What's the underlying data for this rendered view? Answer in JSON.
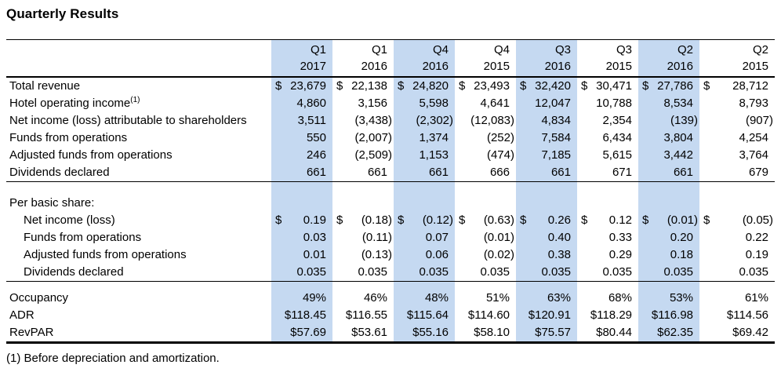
{
  "title": "Quarterly Results",
  "footnote": "(1) Before depreciation and amortization.",
  "currency_symbol": "$",
  "colors": {
    "highlight": "#C5D9F1",
    "text": "#000000",
    "rule": "#000000"
  },
  "columns": [
    {
      "quarter": "Q1",
      "year": "2017",
      "highlight": true
    },
    {
      "quarter": "Q1",
      "year": "2016",
      "highlight": false
    },
    {
      "quarter": "Q4",
      "year": "2016",
      "highlight": true
    },
    {
      "quarter": "Q4",
      "year": "2015",
      "highlight": false
    },
    {
      "quarter": "Q3",
      "year": "2016",
      "highlight": true
    },
    {
      "quarter": "Q3",
      "year": "2015",
      "highlight": false
    },
    {
      "quarter": "Q2",
      "year": "2016",
      "highlight": true
    },
    {
      "quarter": "Q2",
      "year": "2015",
      "highlight": false
    }
  ],
  "sections": [
    {
      "name": "financials",
      "header": null,
      "rows": [
        {
          "label": "Total revenue",
          "currency": true,
          "values": [
            "23,679",
            "22,138",
            "24,820",
            "23,493",
            "32,420",
            "30,471",
            "27,786",
            "28,712"
          ]
        },
        {
          "label": "Hotel operating income",
          "sup": "(1)",
          "values": [
            "4,860",
            "3,156",
            "5,598",
            "4,641",
            "12,047",
            "10,788",
            "8,534",
            "8,793"
          ]
        },
        {
          "label": "Net income (loss) attributable to shareholders",
          "values": [
            "3,511",
            "(3,438)",
            "(2,302)",
            "(12,083)",
            "4,834",
            "2,354",
            "(139)",
            "(907)"
          ]
        },
        {
          "label": "Funds from operations",
          "values": [
            "550",
            "(2,007)",
            "1,374",
            "(252)",
            "7,584",
            "6,434",
            "3,804",
            "4,254"
          ]
        },
        {
          "label": "Adjusted funds from operations",
          "values": [
            "246",
            "(2,509)",
            "1,153",
            "(474)",
            "7,185",
            "5,615",
            "3,442",
            "3,764"
          ]
        },
        {
          "label": "Dividends declared",
          "values": [
            "661",
            "661",
            "661",
            "666",
            "661",
            "671",
            "661",
            "679"
          ]
        }
      ]
    },
    {
      "name": "per-basic-share",
      "header": "Per basic share:",
      "rows": [
        {
          "label": "Net income (loss)",
          "indent": true,
          "currency": true,
          "values": [
            "0.19",
            "(0.18)",
            "(0.12)",
            "(0.63)",
            "0.26",
            "0.12",
            "(0.01)",
            "(0.05)"
          ]
        },
        {
          "label": "Funds from operations",
          "indent": true,
          "values": [
            "0.03",
            "(0.11)",
            "0.07",
            "(0.01)",
            "0.40",
            "0.33",
            "0.20",
            "0.22"
          ]
        },
        {
          "label": "Adjusted funds from operations",
          "indent": true,
          "values": [
            "0.01",
            "(0.13)",
            "0.06",
            "(0.02)",
            "0.38",
            "0.29",
            "0.18",
            "0.19"
          ]
        },
        {
          "label": "Dividends declared",
          "indent": true,
          "values": [
            "0.035",
            "0.035",
            "0.035",
            "0.035",
            "0.035",
            "0.035",
            "0.035",
            "0.035"
          ]
        }
      ]
    },
    {
      "name": "operating-metrics",
      "header": null,
      "rows": [
        {
          "label": "Occupancy",
          "values": [
            "49%",
            "46%",
            "48%",
            "51%",
            "63%",
            "68%",
            "53%",
            "61%"
          ]
        },
        {
          "label": "ADR",
          "values": [
            "$118.45",
            "$116.55",
            "$115.64",
            "$114.60",
            "$120.91",
            "$118.29",
            "$116.98",
            "$114.56"
          ]
        },
        {
          "label": "RevPAR",
          "values": [
            "$57.69",
            "$53.61",
            "$55.16",
            "$58.10",
            "$75.57",
            "$80.44",
            "$62.35",
            "$69.42"
          ]
        }
      ]
    }
  ]
}
